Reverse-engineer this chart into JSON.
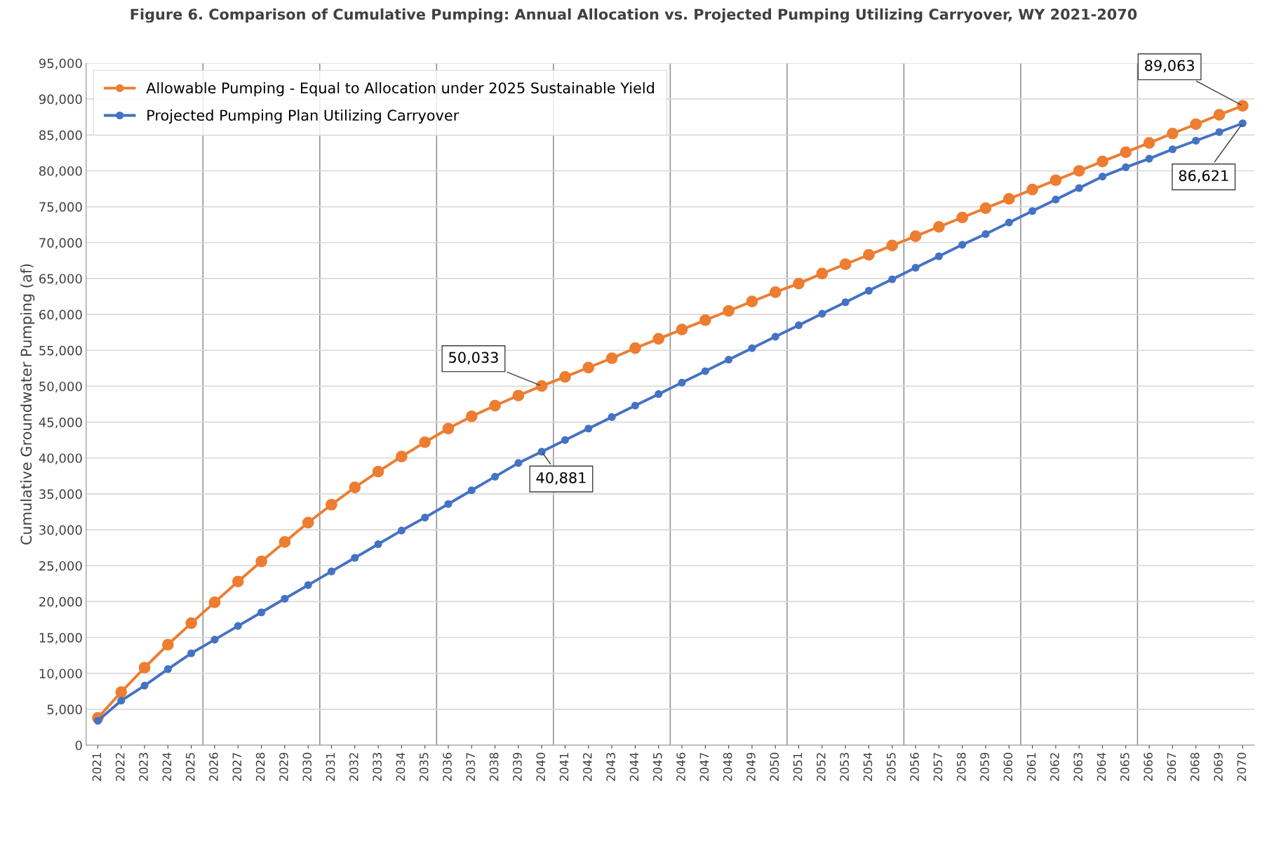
{
  "chart_data": {
    "type": "line",
    "title": "Figure 6. Comparison of Cumulative Pumping: Annual Allocation vs. Projected Pumping Utilizing Carryover, WY 2021-2070",
    "ylabel": "Cumulative Groundwater Pumping (af)",
    "categories": [
      "2021",
      "2022",
      "2023",
      "2024",
      "2025",
      "2026",
      "2027",
      "2028",
      "2029",
      "2030",
      "2031",
      "2032",
      "2033",
      "2034",
      "2035",
      "2036",
      "2037",
      "2038",
      "2039",
      "2040",
      "2041",
      "2042",
      "2043",
      "2044",
      "2045",
      "2046",
      "2047",
      "2048",
      "2049",
      "2050",
      "2051",
      "2052",
      "2053",
      "2054",
      "2055",
      "2056",
      "2057",
      "2058",
      "2059",
      "2060",
      "2061",
      "2062",
      "2063",
      "2064",
      "2065",
      "2066",
      "2067",
      "2068",
      "2069",
      "2070"
    ],
    "series": [
      {
        "name": "Allowable Pumping - Equal to Allocation under 2025 Sustainable Yield",
        "color": "#ed7d31",
        "values": [
          3800,
          7400,
          10800,
          14000,
          17000,
          19900,
          22800,
          25600,
          28300,
          31000,
          33500,
          35900,
          38100,
          40200,
          42200,
          44100,
          45800,
          47300,
          48700,
          50033,
          51300,
          52600,
          53900,
          55300,
          56600,
          57900,
          59200,
          60500,
          61800,
          63100,
          64300,
          65700,
          67000,
          68300,
          69600,
          70900,
          72200,
          73500,
          74800,
          76100,
          77400,
          78700,
          80000,
          81300,
          82600,
          83900,
          85200,
          86500,
          87800,
          89063
        ]
      },
      {
        "name": "Projected Pumping Plan Utilizing Carryover",
        "color": "#4472c4",
        "values": [
          3400,
          6200,
          8300,
          10600,
          12800,
          14700,
          16600,
          18500,
          20400,
          22300,
          24200,
          26100,
          28000,
          29900,
          31700,
          33600,
          35500,
          37400,
          39300,
          40881,
          42500,
          44100,
          45700,
          47300,
          48900,
          50500,
          52100,
          53700,
          55300,
          56900,
          58500,
          60100,
          61700,
          63300,
          64900,
          66500,
          68100,
          69700,
          71200,
          72800,
          74400,
          76000,
          77600,
          79200,
          80500,
          81700,
          83000,
          84200,
          85400,
          86621
        ]
      }
    ],
    "ylim": [
      0,
      95000
    ],
    "yticks": [
      {
        "value": 0,
        "label": "0"
      },
      {
        "value": 5000,
        "label": "5,000"
      },
      {
        "value": 10000,
        "label": "10,000"
      },
      {
        "value": 15000,
        "label": "15,000"
      },
      {
        "value": 20000,
        "label": "20,000"
      },
      {
        "value": 25000,
        "label": "25,000"
      },
      {
        "value": 30000,
        "label": "30,000"
      },
      {
        "value": 35000,
        "label": "35,000"
      },
      {
        "value": 40000,
        "label": "40,000"
      },
      {
        "value": 45000,
        "label": "45,000"
      },
      {
        "value": 50000,
        "label": "50,000"
      },
      {
        "value": 55000,
        "label": "55,000"
      },
      {
        "value": 60000,
        "label": "60,000"
      },
      {
        "value": 65000,
        "label": "65,000"
      },
      {
        "value": 70000,
        "label": "70,000"
      },
      {
        "value": 75000,
        "label": "75,000"
      },
      {
        "value": 80000,
        "label": "80,000"
      },
      {
        "value": 85000,
        "label": "85,000"
      },
      {
        "value": 90000,
        "label": "90,000"
      },
      {
        "value": 95000,
        "label": "95,000"
      }
    ],
    "annotations": [
      {
        "text": "50,033",
        "x": "2040",
        "y": 50033
      },
      {
        "text": "40,881",
        "x": "2040",
        "y": 40881
      },
      {
        "text": "89,063",
        "x": "2070",
        "y": 89063
      },
      {
        "text": "86,621",
        "x": "2070",
        "y": 86621
      }
    ],
    "grid": true,
    "legend": "top left",
    "marker": "circle",
    "line_style": "solid"
  }
}
